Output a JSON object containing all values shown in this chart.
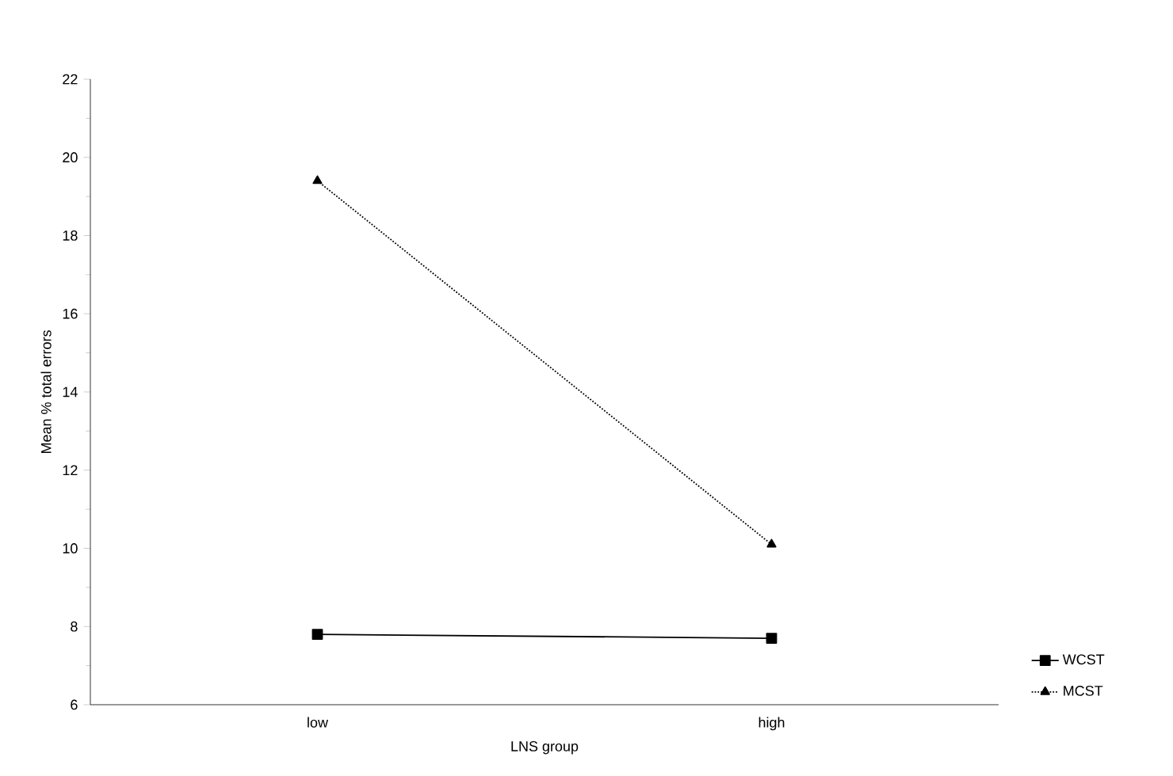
{
  "chart_data": {
    "type": "line",
    "xlabel": "LNS group",
    "ylabel": "Mean % total errors",
    "categories": [
      "low",
      "high"
    ],
    "series": [
      {
        "name": "WCST",
        "color": "#000000",
        "values": [
          7.8,
          7.7
        ],
        "marker": "square",
        "line_style": "solid"
      },
      {
        "name": "MCST",
        "color": "#000000",
        "values": [
          19.4,
          10.1
        ],
        "marker": "triangle",
        "line_style": "dotted"
      }
    ],
    "ylim": [
      6,
      22
    ],
    "yticks": [
      6,
      8,
      10,
      12,
      14,
      16,
      18,
      20,
      22
    ],
    "grid": false,
    "legend": "right"
  }
}
